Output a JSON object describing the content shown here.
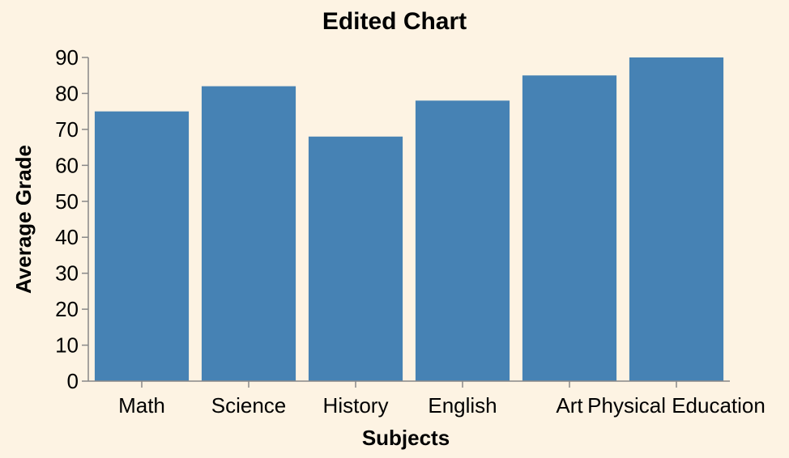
{
  "chart_data": {
    "type": "bar",
    "title": "Edited Chart",
    "xlabel": "Subjects",
    "ylabel": "Average Grade",
    "categories": [
      "Math",
      "Science",
      "History",
      "English",
      "Art",
      "Physical Education"
    ],
    "values": [
      75,
      82,
      68,
      78,
      85,
      90
    ],
    "ylim": [
      0,
      90
    ],
    "yticks": [
      0,
      10,
      20,
      30,
      40,
      50,
      60,
      70,
      80,
      90
    ],
    "grid": false,
    "bar_color": "#4682b4",
    "background": "#fdf3e3"
  }
}
